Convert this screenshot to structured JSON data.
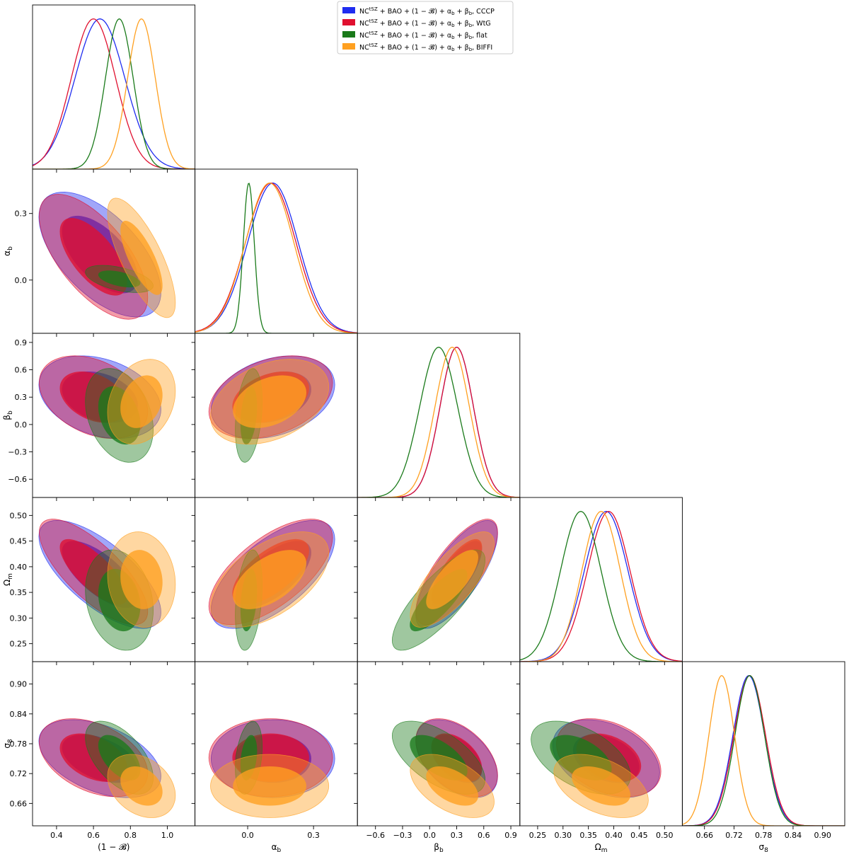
{
  "chart_data": {
    "type": "corner",
    "title": "",
    "colors": {
      "CCCP": "#1f2cf0",
      "WtG": "#e0102f",
      "flat": "#1a7a1a",
      "BIFFI": "#ffa020"
    },
    "legend": {
      "placement": "top",
      "entries": [
        {
          "key": "CCCP",
          "base": "NC",
          "sup": "tSZ",
          "text": " + BAO + (1 − 𝓑) + α",
          "sub1": "b",
          "mid": " + β",
          "sub2": "b",
          "tail": ", CCCP"
        },
        {
          "key": "WtG",
          "base": "NC",
          "sup": "tSZ",
          "text": " + BAO + (1 − 𝓑) + α",
          "sub1": "b",
          "mid": " + β",
          "sub2": "b",
          "tail": ", WtG"
        },
        {
          "key": "flat",
          "base": "NC",
          "sup": "tSZ",
          "text": " + BAO + (1 − 𝓑) + α",
          "sub1": "b",
          "mid": " + β",
          "sub2": "b",
          "tail": ", flat"
        },
        {
          "key": "BIFFI",
          "base": "NC",
          "sup": "tSZ",
          "text": " + BAO + (1 − 𝓑) + α",
          "sub1": "b",
          "mid": " + β",
          "sub2": "b",
          "tail": ", BIFFI"
        }
      ]
    },
    "parameters": [
      {
        "key": "bias",
        "label": "(1 − 𝓑)",
        "range": [
          0.27,
          1.15
        ],
        "ticks": [
          0.4,
          0.6,
          0.8,
          1.0
        ],
        "tick_labels": [
          "0.4",
          "0.6",
          "0.8",
          "1.0"
        ]
      },
      {
        "key": "alpha",
        "label": "α",
        "label_sub": "b",
        "range": [
          -0.24,
          0.5
        ],
        "ticks": [
          0.0,
          0.3
        ],
        "tick_labels": [
          "0.0",
          "0.3"
        ]
      },
      {
        "key": "beta",
        "label": "β",
        "label_sub": "b",
        "range": [
          -0.8,
          1.0
        ],
        "ticks": [
          -0.6,
          -0.3,
          0.0,
          0.3,
          0.6,
          0.9
        ],
        "tick_labels": [
          "−0.6",
          "−0.3",
          "0.0",
          "0.3",
          "0.6",
          "0.9"
        ]
      },
      {
        "key": "om",
        "label": "Ω",
        "label_sub": "m",
        "range": [
          0.215,
          0.535
        ],
        "ticks": [
          0.25,
          0.3,
          0.35,
          0.4,
          0.45,
          0.5
        ],
        "tick_labels": [
          "0.25",
          "0.30",
          "0.35",
          "0.40",
          "0.45",
          "0.50"
        ]
      },
      {
        "key": "s8",
        "label": "σ",
        "label_sub": "8",
        "range": [
          0.615,
          0.945
        ],
        "ticks": [
          0.66,
          0.72,
          0.78,
          0.84,
          0.9
        ],
        "tick_labels": [
          "0.66",
          "0.72",
          "0.78",
          "0.84",
          "0.90"
        ]
      }
    ],
    "series": [
      {
        "key": "CCCP",
        "mean": [
          0.635,
          0.115,
          0.3,
          0.385,
          0.75
        ],
        "sigma": [
          0.135,
          0.115,
          0.185,
          0.043,
          0.032
        ],
        "corr": {
          "0-1": -0.6,
          "0-2": -0.3,
          "0-3": -0.7,
          "0-4": -0.45,
          "1-2": 0.3,
          "1-3": 0.65,
          "1-4": 0.0,
          "2-3": 0.75,
          "2-4": -0.45,
          "3-4": -0.35
        }
      },
      {
        "key": "WtG",
        "mean": [
          0.6,
          0.105,
          0.3,
          0.39,
          0.752
        ],
        "sigma": [
          0.12,
          0.115,
          0.185,
          0.042,
          0.032
        ],
        "corr": {
          "0-1": -0.65,
          "0-2": -0.35,
          "0-3": -0.75,
          "0-4": -0.4,
          "1-2": 0.35,
          "1-3": 0.65,
          "1-4": 0.0,
          "2-3": 0.75,
          "2-4": -0.45,
          "3-4": -0.35
        }
      },
      {
        "key": "flat",
        "mean": [
          0.74,
          0.005,
          0.1,
          0.335,
          0.752
        ],
        "sigma": [
          0.075,
          0.025,
          0.21,
          0.04,
          0.03
        ],
        "corr": {
          "0-1": -0.5,
          "0-2": -0.3,
          "0-3": -0.2,
          "0-4": -0.55,
          "1-2": 0.3,
          "1-3": 0.3,
          "1-4": 0.3,
          "2-3": 0.8,
          "2-4": -0.6,
          "3-4": -0.5
        }
      },
      {
        "key": "BIFFI",
        "mean": [
          0.86,
          0.1,
          0.25,
          0.375,
          0.695
        ],
        "sigma": [
          0.075,
          0.11,
          0.19,
          0.038,
          0.026
        ],
        "corr": {
          "0-1": -0.75,
          "0-2": 0.25,
          "0-3": -0.1,
          "0-4": -0.3,
          "1-2": 0.35,
          "1-3": 0.55,
          "1-4": 0.0,
          "2-3": 0.75,
          "2-4": -0.5,
          "3-4": -0.45
        }
      }
    ],
    "contour_levels": [
      "68%",
      "95%"
    ]
  }
}
